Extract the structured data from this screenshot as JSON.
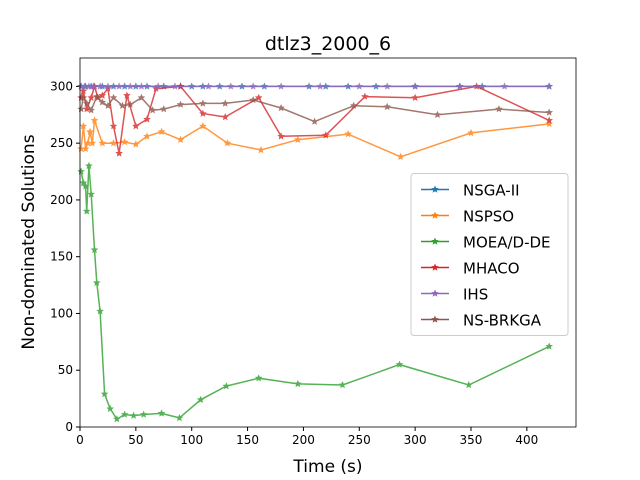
{
  "chart_data": {
    "type": "line",
    "title": "dtlz3_2000_6",
    "x_label": "Time (s)",
    "y_label": "Non-dominated Solutions",
    "xlim": [
      0,
      444
    ],
    "ylim": [
      0,
      325
    ],
    "xticks": [
      0,
      50,
      100,
      150,
      200,
      250,
      300,
      350,
      400
    ],
    "yticks": [
      0,
      50,
      100,
      150,
      200,
      250,
      300
    ],
    "legend": "center right",
    "series": [
      {
        "name": "NSGA-II",
        "color": "#1f77b4",
        "x": [
          1,
          5,
          10,
          20,
          30,
          40,
          50,
          60,
          75,
          90,
          100,
          110,
          125,
          145,
          165,
          205,
          220,
          240,
          265,
          300,
          340,
          360,
          420
        ],
        "values": [
          300,
          300,
          300,
          300,
          300,
          300,
          300,
          300,
          300,
          300,
          300,
          300,
          300,
          300,
          300,
          300,
          300,
          300,
          300,
          300,
          300,
          300,
          300
        ]
      },
      {
        "name": "NSPSO",
        "color": "#ff7f0e",
        "x": [
          1,
          3,
          5,
          7,
          9,
          11,
          13,
          20,
          30,
          40,
          50,
          60,
          73,
          90,
          110,
          132,
          162,
          195,
          240,
          287,
          350,
          420
        ],
        "values": [
          245,
          265,
          245,
          250,
          260,
          250,
          270,
          250,
          250,
          251,
          249,
          256,
          260,
          253,
          265,
          250,
          244,
          253,
          258,
          238,
          259,
          267
        ]
      },
      {
        "name": "MOEA/D-DE",
        "color": "#2ca02c",
        "x": [
          1,
          3,
          5,
          6,
          8,
          10,
          13,
          15,
          18,
          22,
          27,
          33,
          40,
          48,
          57,
          73,
          89,
          108,
          131,
          160,
          195,
          235,
          286,
          348,
          420
        ],
        "values": [
          225,
          215,
          212,
          190,
          230,
          205,
          156,
          127,
          102,
          29,
          16,
          7,
          11,
          10,
          11,
          12,
          8,
          24,
          36,
          43,
          38,
          37,
          55,
          37,
          71
        ]
      },
      {
        "name": "MHACO",
        "color": "#d62728",
        "x": [
          1,
          3,
          6,
          10,
          13,
          16,
          20,
          25,
          30,
          35,
          42,
          50,
          60,
          68,
          90,
          110,
          130,
          160,
          180,
          220,
          255,
          300,
          355,
          420
        ],
        "values": [
          290,
          296,
          280,
          290,
          300,
          290,
          292,
          298,
          265,
          241,
          292,
          265,
          271,
          298,
          300,
          276,
          273,
          290,
          256,
          257,
          291,
          290,
          300,
          270
        ]
      },
      {
        "name": "IHS",
        "color": "#9467bd",
        "x": [
          1,
          4,
          8,
          12,
          18,
          25,
          35,
          45,
          55,
          70,
          85,
          115,
          135,
          155,
          180,
          215,
          250,
          275,
          300,
          340,
          380,
          420
        ],
        "values": [
          300,
          300,
          300,
          300,
          300,
          300,
          300,
          300,
          300,
          300,
          300,
          300,
          300,
          300,
          300,
          300,
          300,
          300,
          300,
          300,
          300,
          300
        ]
      },
      {
        "name": "NS-BRKGA",
        "color": "#8c564b",
        "x": [
          1,
          3,
          6,
          10,
          15,
          20,
          25,
          30,
          38,
          45,
          55,
          65,
          75,
          90,
          110,
          130,
          155,
          180,
          210,
          245,
          275,
          320,
          375,
          420
        ],
        "values": [
          280,
          290,
          285,
          279,
          291,
          286,
          283,
          290,
          283,
          284,
          290,
          279,
          280,
          284,
          285,
          285,
          288,
          281,
          269,
          283,
          282,
          275,
          280,
          277
        ]
      }
    ]
  }
}
